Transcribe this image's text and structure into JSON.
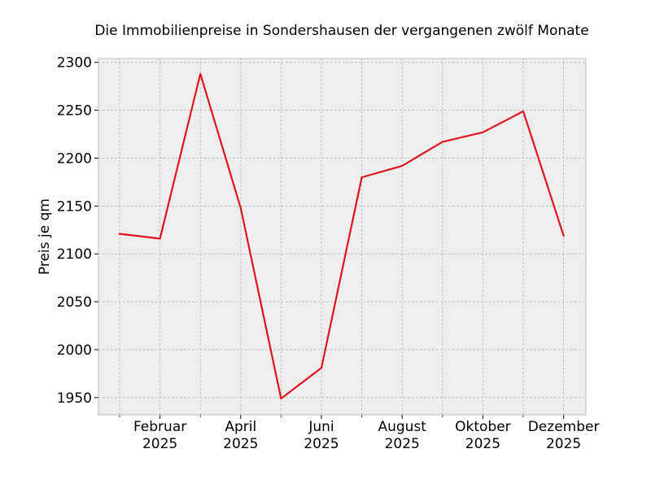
{
  "chart_data": {
    "type": "line",
    "title": "Die Immobilienpreise in Sondershausen der vergangenen zwölf Monate",
    "xlabel": "",
    "ylabel": "Preis je qm",
    "x": [
      "2025-01",
      "2025-02",
      "2025-03",
      "2025-04",
      "2025-05",
      "2025-06",
      "2025-07",
      "2025-08",
      "2025-09",
      "2025-10",
      "2025-11",
      "2025-12"
    ],
    "x_tick_labels": [
      {
        "month": "2025-02",
        "label": "Februar",
        "year": "2025"
      },
      {
        "month": "2025-04",
        "label": "April",
        "year": "2025"
      },
      {
        "month": "2025-06",
        "label": "Juni",
        "year": "2025"
      },
      {
        "month": "2025-08",
        "label": "August",
        "year": "2025"
      },
      {
        "month": "2025-10",
        "label": "Oktober",
        "year": "2025"
      },
      {
        "month": "2025-12",
        "label": "Dezember",
        "year": "2025"
      }
    ],
    "x_minor_ticks": [
      "2025-01",
      "2025-03",
      "2025-05",
      "2025-07",
      "2025-09",
      "2025-11"
    ],
    "series": [
      {
        "values": [
          2121,
          2116,
          2288,
          2148,
          1949,
          1981,
          2180,
          2192,
          2217,
          2227,
          2249,
          2119
        ]
      }
    ],
    "ylim": [
      1932,
      2304
    ],
    "yticks": [
      1950,
      2000,
      2050,
      2100,
      2150,
      2200,
      2250,
      2300
    ],
    "grid": true,
    "line_color": "#e0141e",
    "plot_background": "#eeeeee",
    "grid_color": "#b2b2b2",
    "spine_color": "#bcbcbc"
  }
}
